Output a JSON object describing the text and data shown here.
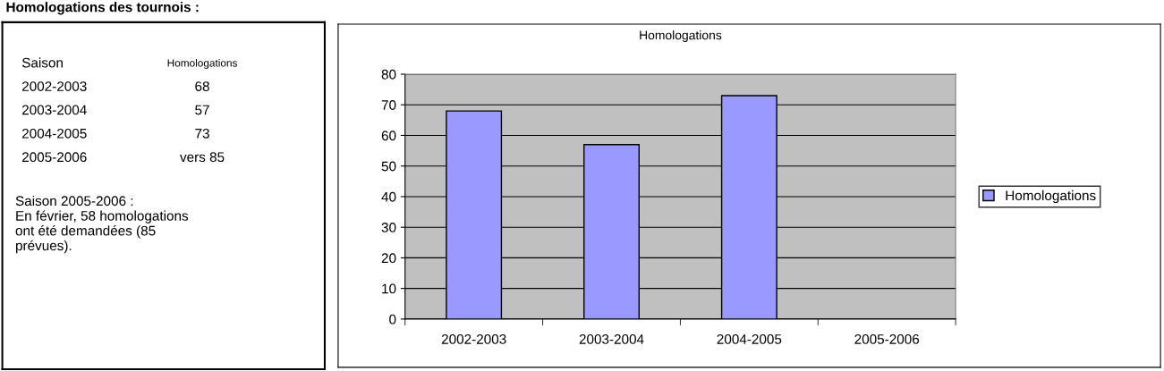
{
  "chart_data": [
    {
      "type": "other",
      "title": "Homologations des tournois :",
      "annotations": [
        "Saison",
        "Homologations",
        "2002-2003",
        "68",
        "2003-2004",
        "57",
        "2004-2005",
        "73",
        "2005-2006",
        "vers 85",
        "Saison 2005-2006 :\nEn février, 58 homologations\nont été demandées (85\nprévues)."
      ]
    },
    {
      "type": "bar",
      "title": "Homologations",
      "categories": [
        "2002-2003",
        "2003-2004",
        "2004-2005",
        "2005-2006"
      ],
      "series": [
        {
          "name": "Homologations",
          "color": "#9999ff",
          "values": [
            68,
            57,
            73,
            null
          ]
        }
      ],
      "ylim": [
        0,
        80
      ],
      "yticks": [
        0,
        10,
        20,
        30,
        40,
        50,
        60,
        70,
        80
      ],
      "grid": "y",
      "legend": "right"
    }
  ]
}
